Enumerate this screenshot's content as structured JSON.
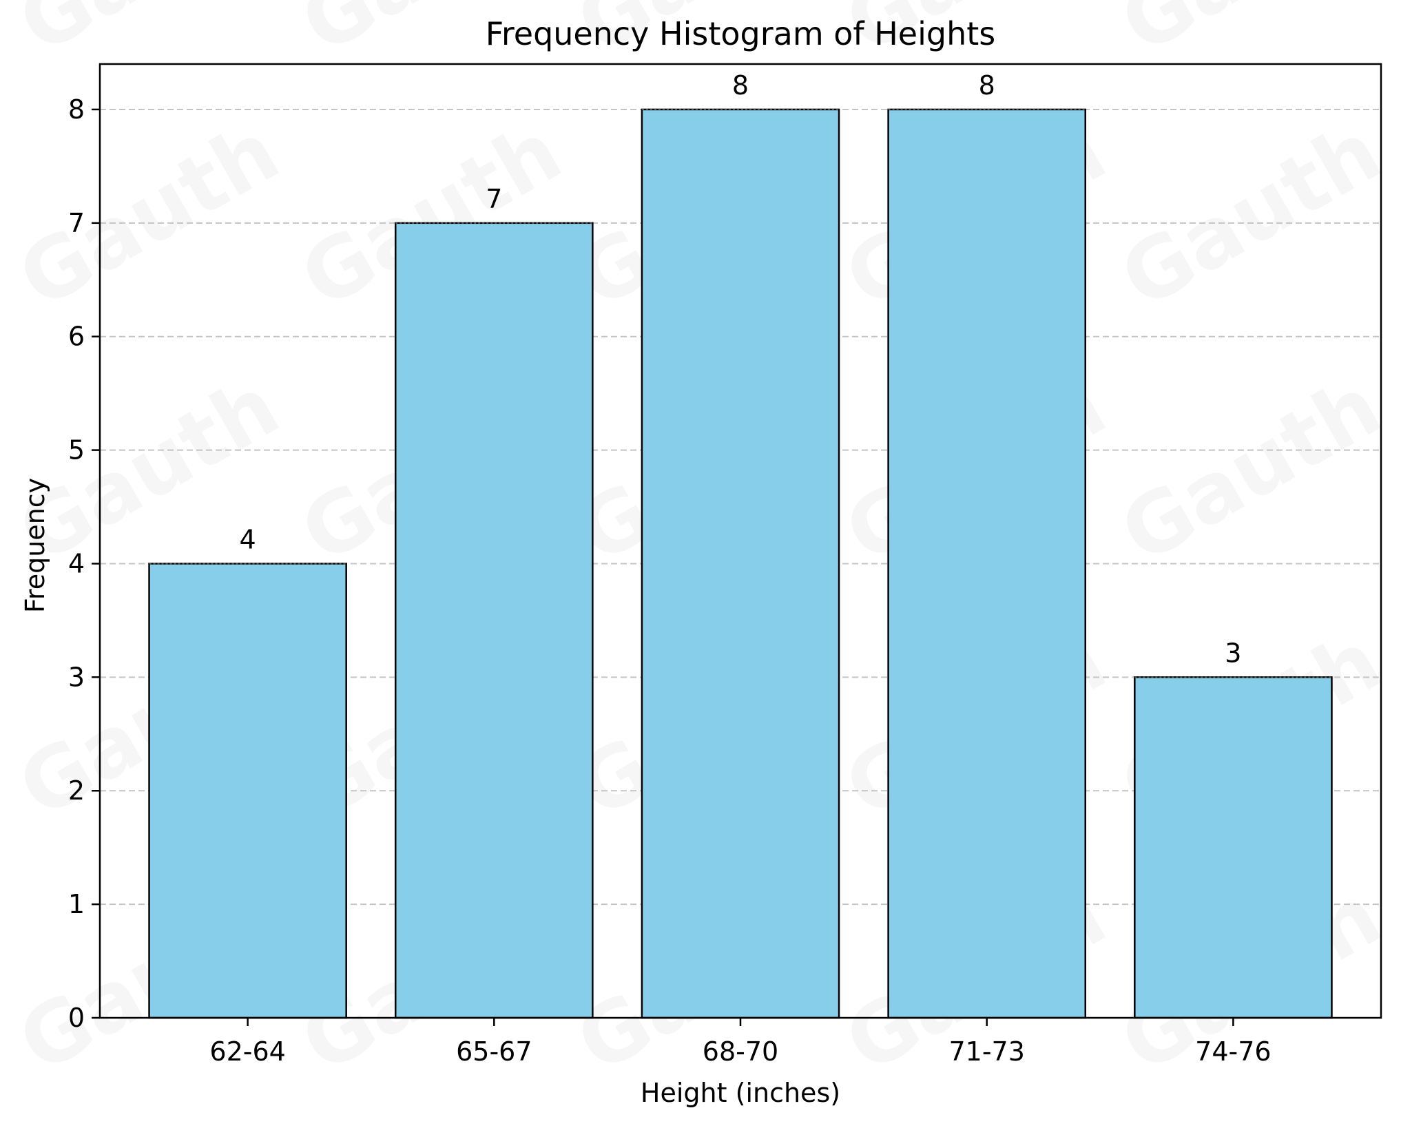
{
  "chart_data": {
    "type": "bar",
    "title": "Frequency Histogram of Heights",
    "xlabel": "Height (inches)",
    "ylabel": "Frequency",
    "categories": [
      "62-64",
      "65-67",
      "68-70",
      "71-73",
      "74-76"
    ],
    "values": [
      4,
      7,
      8,
      8,
      3
    ],
    "ylim": [
      0,
      8.4
    ],
    "yticks": [
      0,
      1,
      2,
      3,
      4,
      5,
      6,
      7,
      8
    ],
    "grid": {
      "axis": "y",
      "style": "dashed",
      "color": "#c4c4c4"
    },
    "bar_color": "#87ceeb",
    "bar_edge_color": "#000000",
    "data_labels": true
  },
  "watermark": {
    "text": "Gauth"
  }
}
